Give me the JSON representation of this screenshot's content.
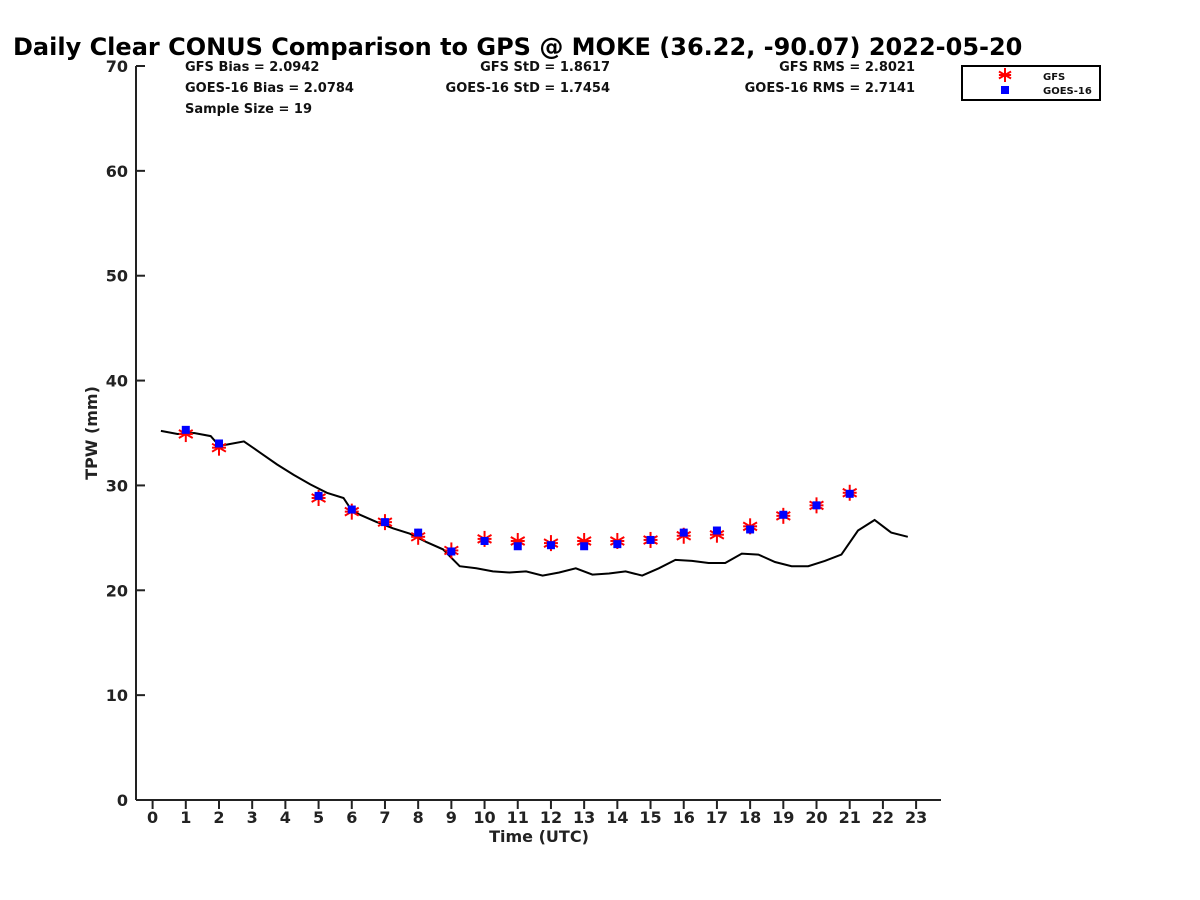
{
  "chart_data": {
    "type": "line",
    "title": "Daily Clear CONUS Comparison to GPS @ MOKE (36.22, -90.07) 2022-05-20",
    "xlabel": "Time (UTC)",
    "ylabel": "TPW (mm)",
    "xlim": [
      -0.5,
      23.75
    ],
    "ylim": [
      0,
      70
    ],
    "x_ticks": [
      0,
      1,
      2,
      3,
      4,
      5,
      6,
      7,
      8,
      9,
      10,
      11,
      12,
      13,
      14,
      15,
      16,
      17,
      18,
      19,
      20,
      21,
      22,
      23
    ],
    "y_ticks": [
      0,
      10,
      20,
      30,
      40,
      50,
      60,
      70
    ],
    "grid": false,
    "legend_position": "top-right",
    "stats": {
      "gfs_bias": "GFS Bias = 2.0942",
      "goes_bias": "GOES-16 Bias = 2.0784",
      "sample_size": "Sample Size = 19",
      "gfs_std": "GFS StD = 1.8617",
      "goes_std": "GOES-16 StD = 1.7454",
      "gfs_rms": "GFS RMS = 2.8021",
      "goes_rms": "GOES-16 RMS = 2.7141"
    },
    "series": [
      {
        "marker": "line",
        "color": "#000000",
        "x": [
          0.25,
          0.75,
          1.25,
          1.75,
          2.0,
          2.25,
          2.75,
          3.25,
          3.75,
          4.25,
          4.75,
          5.25,
          5.75,
          6.0,
          6.25,
          6.75,
          7.25,
          7.75,
          8.25,
          8.75,
          9.0,
          9.25,
          9.75,
          10.25,
          10.75,
          11.25,
          11.75,
          12.25,
          12.75,
          13.25,
          13.75,
          14.25,
          14.75,
          15.25,
          15.75,
          16.25,
          16.75,
          17.25,
          17.75,
          18.25,
          18.75,
          19.25,
          19.75,
          20.25,
          20.75,
          21.25,
          21.75,
          22.25,
          22.75
        ],
        "y": [
          35.2,
          34.9,
          35.0,
          34.7,
          33.8,
          33.9,
          34.2,
          33.1,
          32.0,
          31.0,
          30.1,
          29.3,
          28.8,
          27.6,
          27.2,
          26.5,
          25.9,
          25.4,
          24.6,
          23.9,
          23.1,
          22.3,
          22.1,
          21.8,
          21.7,
          21.8,
          21.4,
          21.7,
          22.1,
          21.5,
          21.6,
          21.8,
          21.4,
          22.1,
          22.9,
          22.8,
          22.6,
          22.6,
          23.5,
          23.4,
          22.7,
          22.3,
          22.3,
          22.8,
          23.4,
          25.7,
          26.7,
          25.5,
          25.1
        ]
      },
      {
        "name": "GFS",
        "marker": "asterisk",
        "color": "#ff0000",
        "x": [
          1,
          2,
          5,
          6,
          7,
          8,
          9,
          10,
          11,
          12,
          13,
          14,
          15,
          16,
          17,
          18,
          19,
          20,
          21
        ],
        "y": [
          34.9,
          33.6,
          28.8,
          27.5,
          26.5,
          25.1,
          23.8,
          24.9,
          24.7,
          24.5,
          24.7,
          24.7,
          24.8,
          25.2,
          25.3,
          26.1,
          27.1,
          28.1,
          29.3
        ]
      },
      {
        "name": "GOES-16",
        "marker": "square",
        "color": "#0000ff",
        "x": [
          1,
          2,
          5,
          6,
          7,
          8,
          9,
          10,
          11,
          12,
          13,
          14,
          15,
          16,
          17,
          18,
          19,
          20,
          21
        ],
        "y": [
          35.3,
          34.0,
          29.0,
          27.7,
          26.5,
          25.5,
          23.7,
          24.7,
          24.2,
          24.3,
          24.2,
          24.4,
          24.8,
          25.5,
          25.7,
          25.8,
          27.2,
          28.1,
          29.2
        ]
      }
    ]
  }
}
